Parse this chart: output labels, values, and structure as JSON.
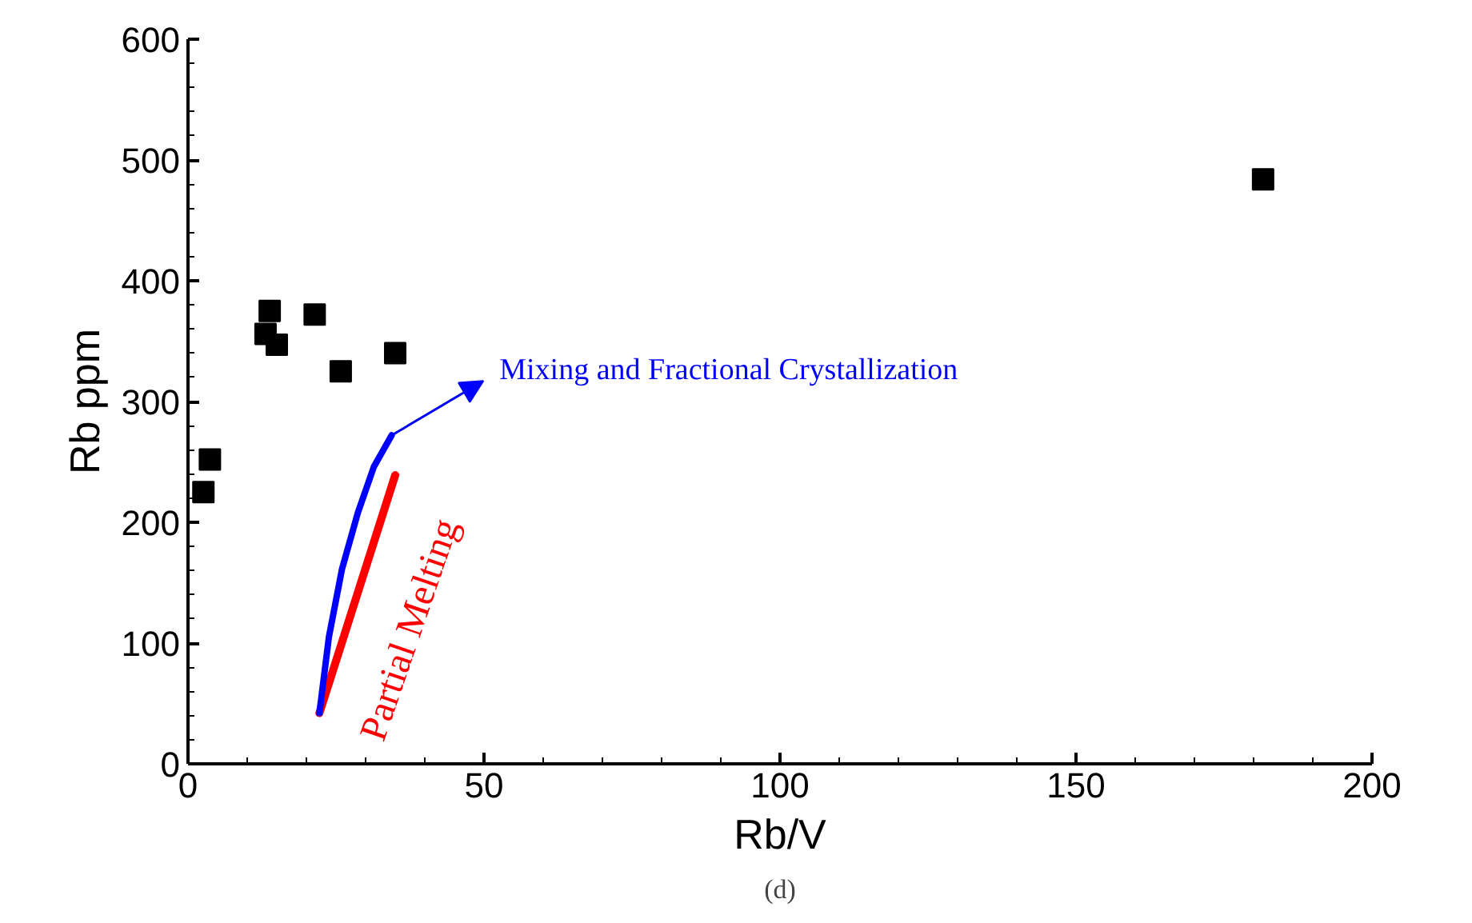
{
  "chart_data": {
    "type": "scatter",
    "xlabel": "Rb/V",
    "ylabel": "Rb ppm",
    "xlim": [
      0,
      200
    ],
    "ylim": [
      0,
      600
    ],
    "xticks": [
      0,
      50,
      100,
      150,
      200
    ],
    "yticks": [
      0,
      100,
      200,
      300,
      400,
      500,
      600
    ],
    "grid": false,
    "series": [
      {
        "marker": "square",
        "color": "#000000",
        "x": [
          2.6,
          3.7,
          13.1,
          13.8,
          15.0,
          21.4,
          25.8,
          35.0,
          181.6
        ],
        "values": [
          225,
          252,
          356,
          375,
          347,
          372,
          325,
          340,
          484
        ]
      },
      {
        "type": "line",
        "marker": "none",
        "name": "Partial Melting",
        "color": "#ff0000",
        "x": [
          22.2,
          35.0
        ],
        "values": [
          42,
          239
        ]
      },
      {
        "type": "line",
        "marker": "none",
        "name": "Mixing and Fractional Crystallization",
        "color": "#0000ff",
        "x": [
          22.2,
          23.8,
          26.0,
          28.7,
          31.4,
          34.4
        ],
        "values": [
          42,
          105,
          161,
          208,
          246,
          272
        ]
      }
    ],
    "annotations": [
      "(d)"
    ]
  }
}
